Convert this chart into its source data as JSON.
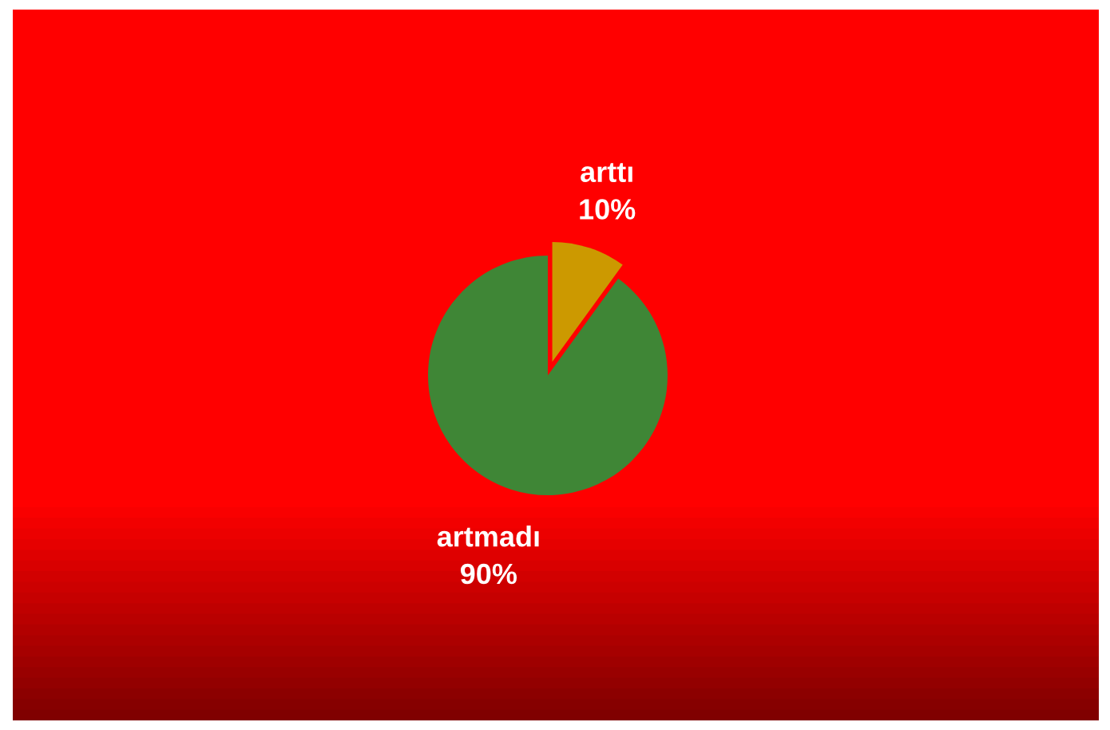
{
  "chart_data": {
    "type": "pie",
    "categories": [
      "arttı",
      "artmadı"
    ],
    "values": [
      10,
      90
    ],
    "value_labels": [
      "10%",
      "90%"
    ],
    "colors": [
      "#cc9900",
      "#3f8636"
    ]
  }
}
